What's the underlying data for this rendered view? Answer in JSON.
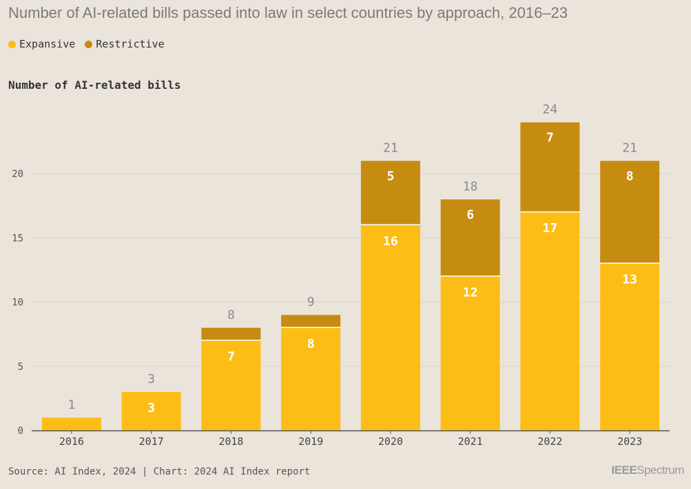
{
  "title": "Number of AI-related bills passed into law in select countries by approach, 2016–23",
  "legend": [
    {
      "label": "Expansive",
      "color": "#fcbe16"
    },
    {
      "label": "Restrictive",
      "color": "#c68c12"
    }
  ],
  "source": "Source: AI Index, 2024 | Chart: 2024 AI Index report",
  "brand": {
    "bold": "IEEE",
    "light": "Spectrum"
  },
  "chart_data": {
    "type": "bar",
    "stacked": true,
    "title": "Number of AI-related bills passed into law in select countries by approach, 2016–23",
    "ylabel": "Number of AI-related bills",
    "xlabel": "",
    "categories": [
      "2016",
      "2017",
      "2018",
      "2019",
      "2020",
      "2021",
      "2022",
      "2023"
    ],
    "series": [
      {
        "name": "Expansive",
        "values": [
          1,
          3,
          7,
          8,
          16,
          12,
          17,
          13
        ],
        "color": "#fcbe16"
      },
      {
        "name": "Restrictive",
        "values": [
          0,
          0,
          1,
          1,
          5,
          6,
          7,
          8
        ],
        "color": "#c68c12"
      }
    ],
    "totals": [
      1,
      3,
      8,
      9,
      21,
      18,
      24,
      21
    ],
    "yticks": [
      0,
      5,
      10,
      15,
      20
    ],
    "ylim": [
      0,
      24
    ],
    "grid": true,
    "legend_position": "top-left"
  }
}
